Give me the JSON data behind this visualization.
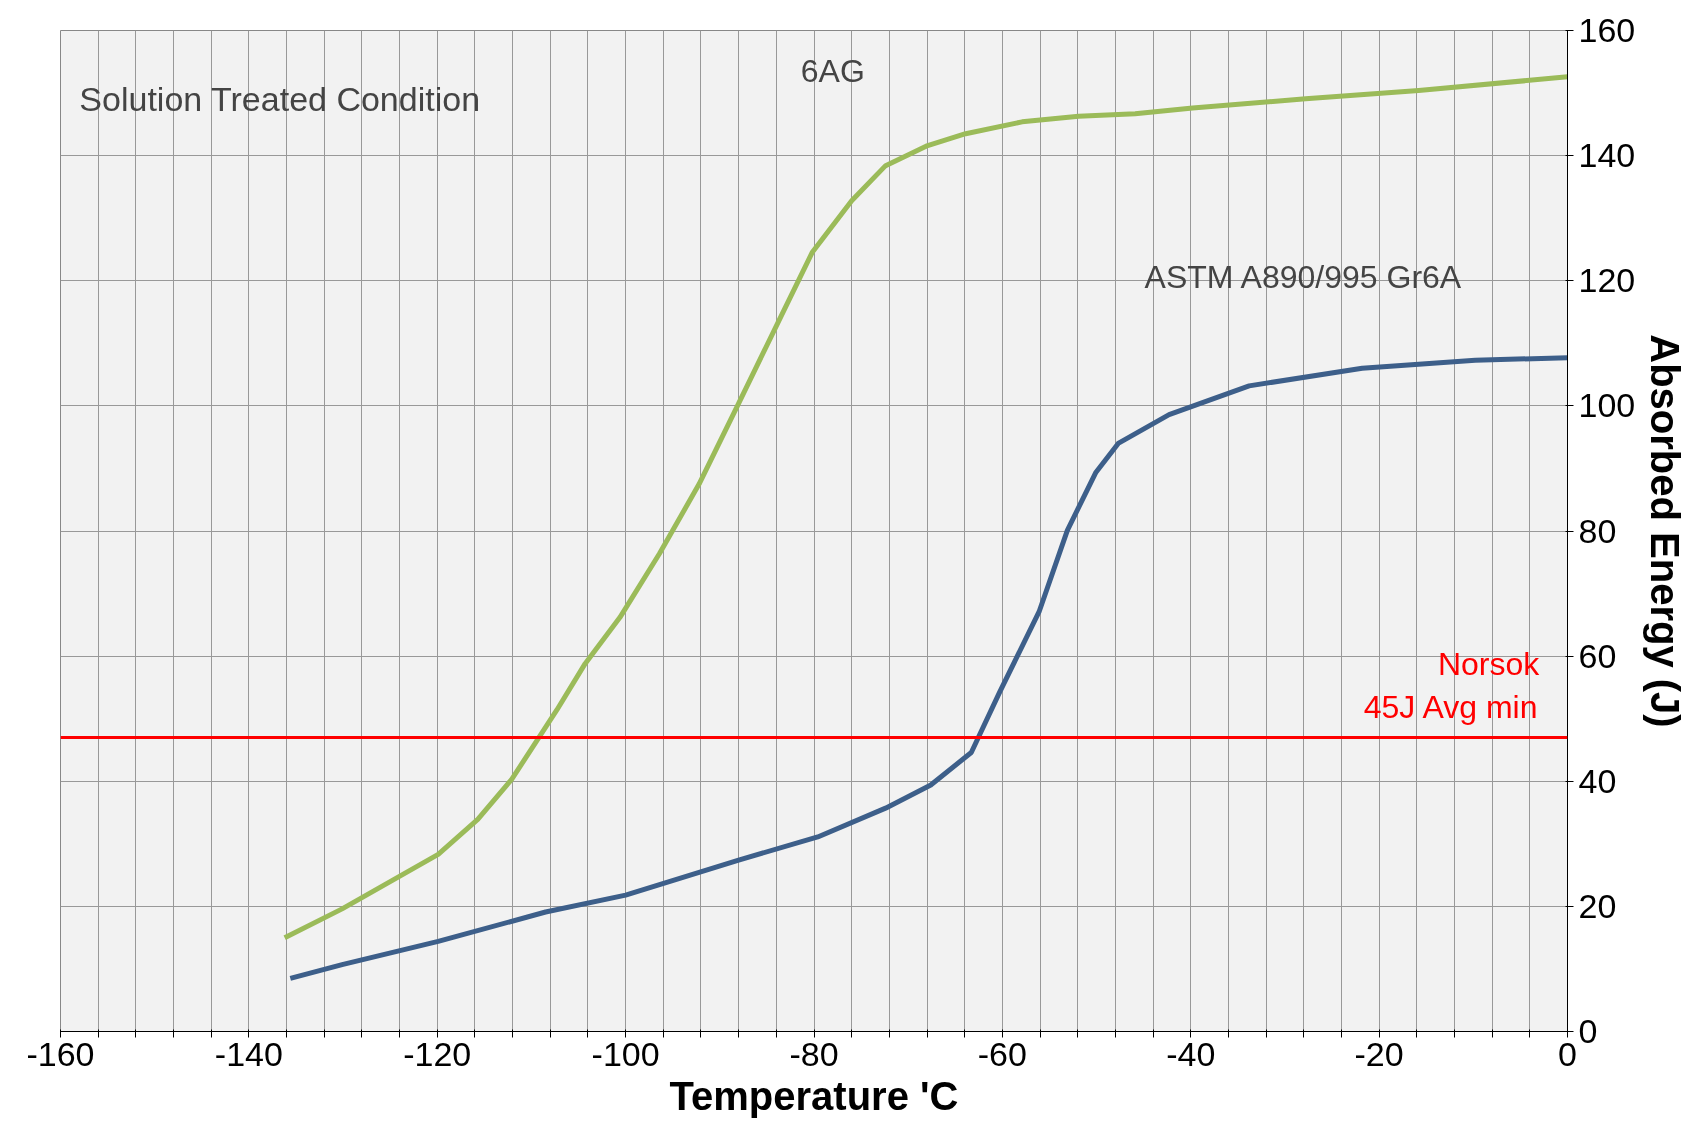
{
  "chart_data": {
    "type": "line",
    "xlabel": "Temperature 'C",
    "ylabel": "Absorbed Energy (J)",
    "annotations": [
      "Solution Treated Condition"
    ],
    "xlim": [
      -160,
      0
    ],
    "ylim": [
      0,
      160
    ],
    "xticks": [
      -160,
      {
        "value": -156,
        "label": null
      },
      {
        "value": -152,
        "label": null
      },
      {
        "value": -148,
        "label": null
      },
      {
        "value": -144,
        "label": null
      },
      -140,
      {
        "value": -136,
        "label": null
      },
      {
        "value": -132,
        "label": null
      },
      {
        "value": -128,
        "label": null
      },
      {
        "value": -124,
        "label": null
      },
      -120,
      {
        "value": -116,
        "label": null
      },
      {
        "value": -112,
        "label": null
      },
      {
        "value": -108,
        "label": null
      },
      {
        "value": -104,
        "label": null
      },
      -100,
      {
        "value": -96,
        "label": null
      },
      {
        "value": -92,
        "label": null
      },
      {
        "value": -88,
        "label": null
      },
      {
        "value": -84,
        "label": null
      },
      -80,
      {
        "value": -76,
        "label": null
      },
      {
        "value": -72,
        "label": null
      },
      {
        "value": -68,
        "label": null
      },
      {
        "value": -64,
        "label": null
      },
      -60,
      {
        "value": -56,
        "label": null
      },
      {
        "value": -52,
        "label": null
      },
      {
        "value": -48,
        "label": null
      },
      {
        "value": -44,
        "label": null
      },
      -40,
      {
        "value": -36,
        "label": null
      },
      {
        "value": -32,
        "label": null
      },
      {
        "value": -28,
        "label": null
      },
      {
        "value": -24,
        "label": null
      },
      -20,
      {
        "value": -16,
        "label": null
      },
      {
        "value": -12,
        "label": null
      },
      {
        "value": -8,
        "label": null
      },
      {
        "value": -4,
        "label": null
      },
      0
    ],
    "yticks": [
      0,
      20,
      40,
      60,
      80,
      100,
      120,
      140,
      160
    ],
    "grid": true,
    "marker": "none",
    "line_style": "solid",
    "ref_lines": [
      {
        "axis": "y",
        "value": 47,
        "label": "Norsok\n45J Avg min",
        "color": "#ff0000"
      }
    ],
    "series": [
      {
        "name": "6AG",
        "color": "#9bbb59",
        "x": [
          -136.2,
          -130.1,
          -119.9,
          -115.7,
          -112.1,
          -107.3,
          -104.3,
          -100.6,
          -96.4,
          -92.2,
          -88.0,
          -83.8,
          -80.2,
          -76.0,
          -72.4,
          -68.1,
          -63.9,
          -57.9,
          -51.9,
          -45.9,
          -39.8,
          -27.8,
          -15.8,
          0
        ],
        "values": [
          15,
          19.6,
          28.3,
          33.9,
          40.3,
          51.4,
          58.8,
          66.2,
          76.4,
          87.5,
          100.4,
          113.4,
          124.5,
          132.8,
          138.4,
          141.5,
          143.5,
          145.4,
          146.3,
          146.7,
          147.6,
          149.1,
          150.4,
          152.6
        ]
      },
      {
        "name": "ASTM A890/995 Gr6A",
        "color": "#3d5f8a",
        "x": [
          -135.6,
          -130.1,
          -119.9,
          -108.5,
          -100,
          -88,
          -79.6,
          -72.4,
          -67.6,
          -63.3,
          -60.3,
          -56.1,
          -53.1,
          -50.1,
          -47.7,
          -42.3,
          -33.8,
          -21.8,
          -9.8,
          0
        ],
        "values": [
          8.5,
          10.7,
          14.4,
          19.1,
          21.8,
          27.4,
          31.1,
          35.7,
          39.4,
          44.6,
          54.2,
          67.1,
          80.1,
          89.3,
          94.0,
          98.6,
          103.2,
          106.0,
          107.3,
          107.7
        ]
      }
    ]
  }
}
